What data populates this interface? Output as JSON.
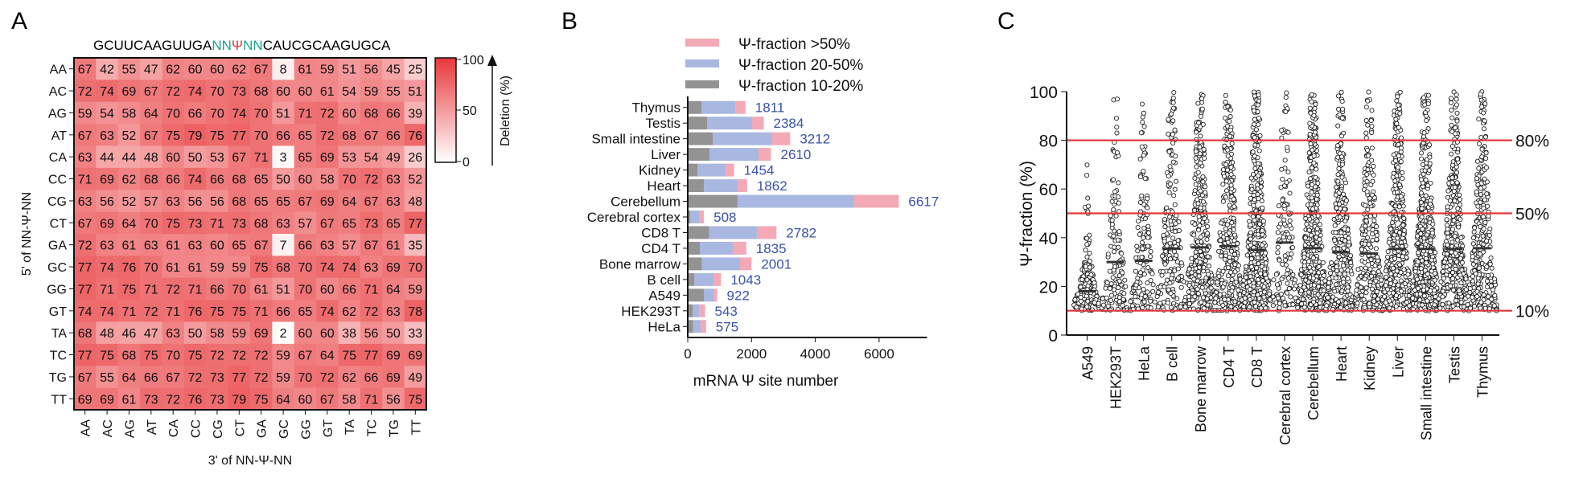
{
  "panels": {
    "a": "A",
    "b": "B",
    "c": "C"
  },
  "chart_data": [
    {
      "type": "heatmap",
      "panel": "A",
      "title_sequence": {
        "prefix": "GCUUCAAGUUGA",
        "nn_left": "NN",
        "psi": "Ψ",
        "nn_right": "NN",
        "suffix": "CAUCGCAAGUGCA"
      },
      "ylabel": "5' of NN-Ψ-NN",
      "xlabel": "3' of NN-Ψ-NN",
      "row_labels": [
        "AA",
        "AC",
        "AG",
        "AT",
        "CA",
        "CC",
        "CG",
        "CT",
        "GA",
        "GC",
        "GG",
        "GT",
        "TA",
        "TC",
        "TG",
        "TT"
      ],
      "col_labels": [
        "AA",
        "AC",
        "AG",
        "AT",
        "CA",
        "CC",
        "CG",
        "CT",
        "GA",
        "GC",
        "GG",
        "GT",
        "TA",
        "TC",
        "TG",
        "TT"
      ],
      "values": [
        [
          67,
          42,
          55,
          47,
          62,
          60,
          60,
          62,
          67,
          8,
          61,
          59,
          51,
          56,
          45,
          25
        ],
        [
          72,
          74,
          69,
          67,
          72,
          74,
          70,
          73,
          68,
          60,
          60,
          61,
          54,
          59,
          55,
          51
        ],
        [
          59,
          54,
          58,
          64,
          70,
          66,
          70,
          74,
          70,
          51,
          71,
          72,
          60,
          68,
          66,
          39
        ],
        [
          67,
          63,
          52,
          67,
          75,
          79,
          75,
          77,
          70,
          66,
          65,
          72,
          68,
          67,
          66,
          76
        ],
        [
          63,
          44,
          44,
          48,
          60,
          50,
          53,
          67,
          71,
          3,
          65,
          69,
          53,
          54,
          49,
          26
        ],
        [
          71,
          69,
          62,
          68,
          66,
          74,
          66,
          68,
          65,
          50,
          60,
          58,
          70,
          72,
          63,
          52
        ],
        [
          63,
          56,
          52,
          57,
          63,
          56,
          56,
          68,
          65,
          65,
          67,
          69,
          64,
          67,
          63,
          48
        ],
        [
          67,
          69,
          64,
          70,
          75,
          73,
          71,
          73,
          68,
          63,
          57,
          67,
          65,
          73,
          65,
          77
        ],
        [
          72,
          63,
          61,
          63,
          61,
          63,
          60,
          65,
          67,
          7,
          66,
          63,
          57,
          67,
          61,
          35
        ],
        [
          77,
          74,
          76,
          70,
          61,
          61,
          59,
          59,
          75,
          68,
          70,
          74,
          74,
          63,
          69,
          70
        ],
        [
          77,
          71,
          75,
          71,
          72,
          71,
          66,
          70,
          61,
          51,
          70,
          60,
          66,
          71,
          64,
          59
        ],
        [
          74,
          74,
          71,
          72,
          71,
          76,
          75,
          75,
          71,
          66,
          65,
          74,
          62,
          72,
          63,
          78
        ],
        [
          68,
          48,
          46,
          47,
          63,
          50,
          58,
          59,
          69,
          2,
          60,
          60,
          38,
          56,
          50,
          33
        ],
        [
          77,
          75,
          68,
          75,
          70,
          75,
          72,
          72,
          72,
          59,
          67,
          64,
          75,
          77,
          69,
          69
        ],
        [
          67,
          55,
          64,
          66,
          67,
          72,
          73,
          77,
          72,
          59,
          70,
          72,
          62,
          66,
          69,
          49
        ],
        [
          69,
          69,
          61,
          73,
          72,
          76,
          73,
          79,
          75,
          64,
          60,
          67,
          58,
          71,
          56,
          75
        ]
      ],
      "colorbar": {
        "label": "Deletion (%)",
        "range": [
          0,
          100
        ],
        "ticks": [
          "100",
          "50",
          "0"
        ],
        "color_low": "#ffffff",
        "color_high": "#e8373a"
      }
    },
    {
      "type": "bar",
      "orientation": "horizontal",
      "stacked": true,
      "panel": "B",
      "xlabel": "mRNA Ψ site number",
      "xlim": [
        0,
        7500
      ],
      "xticks": [
        "0",
        "2000",
        "4000",
        "6000"
      ],
      "legend_position": "top",
      "categories": [
        "Thymus",
        "Testis",
        "Small intestine",
        "Liver",
        "Kidney",
        "Heart",
        "Cerebellum",
        "Cerebral cortex",
        "CD8 T",
        "CD4 T",
        "Bone marrow",
        "B cell",
        "A549",
        "HEK293T",
        "HeLa"
      ],
      "series": [
        {
          "name": "Ψ-fraction 10-20%",
          "color": "#939393",
          "values": [
            429,
            605,
            790,
            681,
            311,
            504,
            1563,
            84,
            672,
            378,
            445,
            210,
            504,
            151,
            168
          ]
        },
        {
          "name": "Ψ-fraction 20-50%",
          "color": "#a8b8e0",
          "values": [
            1067,
            1412,
            1857,
            1537,
            882,
            1059,
            3647,
            269,
            1496,
            1034,
            1194,
            597,
            303,
            210,
            235
          ]
        },
        {
          "name": "Ψ-fraction >50%",
          "color": "#f4a9b6",
          "values": [
            315,
            367,
            565,
            392,
            261,
            299,
            1407,
            155,
            614,
            423,
            362,
            236,
            115,
            182,
            172
          ]
        }
      ],
      "totals": [
        "1811",
        "2384",
        "3212",
        "2610",
        "1454",
        "1862",
        "6617",
        "508",
        "2782",
        "1835",
        "2001",
        "1043",
        "922",
        "543",
        "575"
      ],
      "legend_order": [
        "Ψ-fraction >50%",
        "Ψ-fraction 20-50%",
        "Ψ-fraction 10-20%"
      ]
    },
    {
      "type": "scatter",
      "subtype": "beeswarm",
      "panel": "C",
      "ylabel": "Ψ-fraction (%)",
      "ylim": [
        0,
        100
      ],
      "yticks": [
        "0",
        "20",
        "40",
        "60",
        "80",
        "100"
      ],
      "categories": [
        "A549",
        "HEK293T",
        "HeLa",
        "B cell",
        "Bone marrow",
        "CD4 T",
        "CD8 T",
        "Cerebral cortex",
        "Cerebellum",
        "Heart",
        "Kidney",
        "Liver",
        "Small intestine",
        "Testis",
        "Thymus"
      ],
      "medians": [
        18,
        30,
        30.5,
        35.5,
        36,
        36.5,
        35,
        38,
        35.7,
        34,
        33.5,
        35.4,
        35.4,
        35.4,
        35.7
      ],
      "site_counts": [
        922,
        543,
        575,
        1043,
        2001,
        1835,
        2782,
        508,
        6617,
        1862,
        1454,
        2610,
        3212,
        2384,
        1811
      ],
      "reference_lines": [
        {
          "value": 80,
          "label": "80%"
        },
        {
          "value": 50,
          "label": "50%"
        },
        {
          "value": 10,
          "label": "10%"
        }
      ],
      "reference_color": "#e0393e",
      "point_min": 10,
      "point_max": 100
    }
  ]
}
